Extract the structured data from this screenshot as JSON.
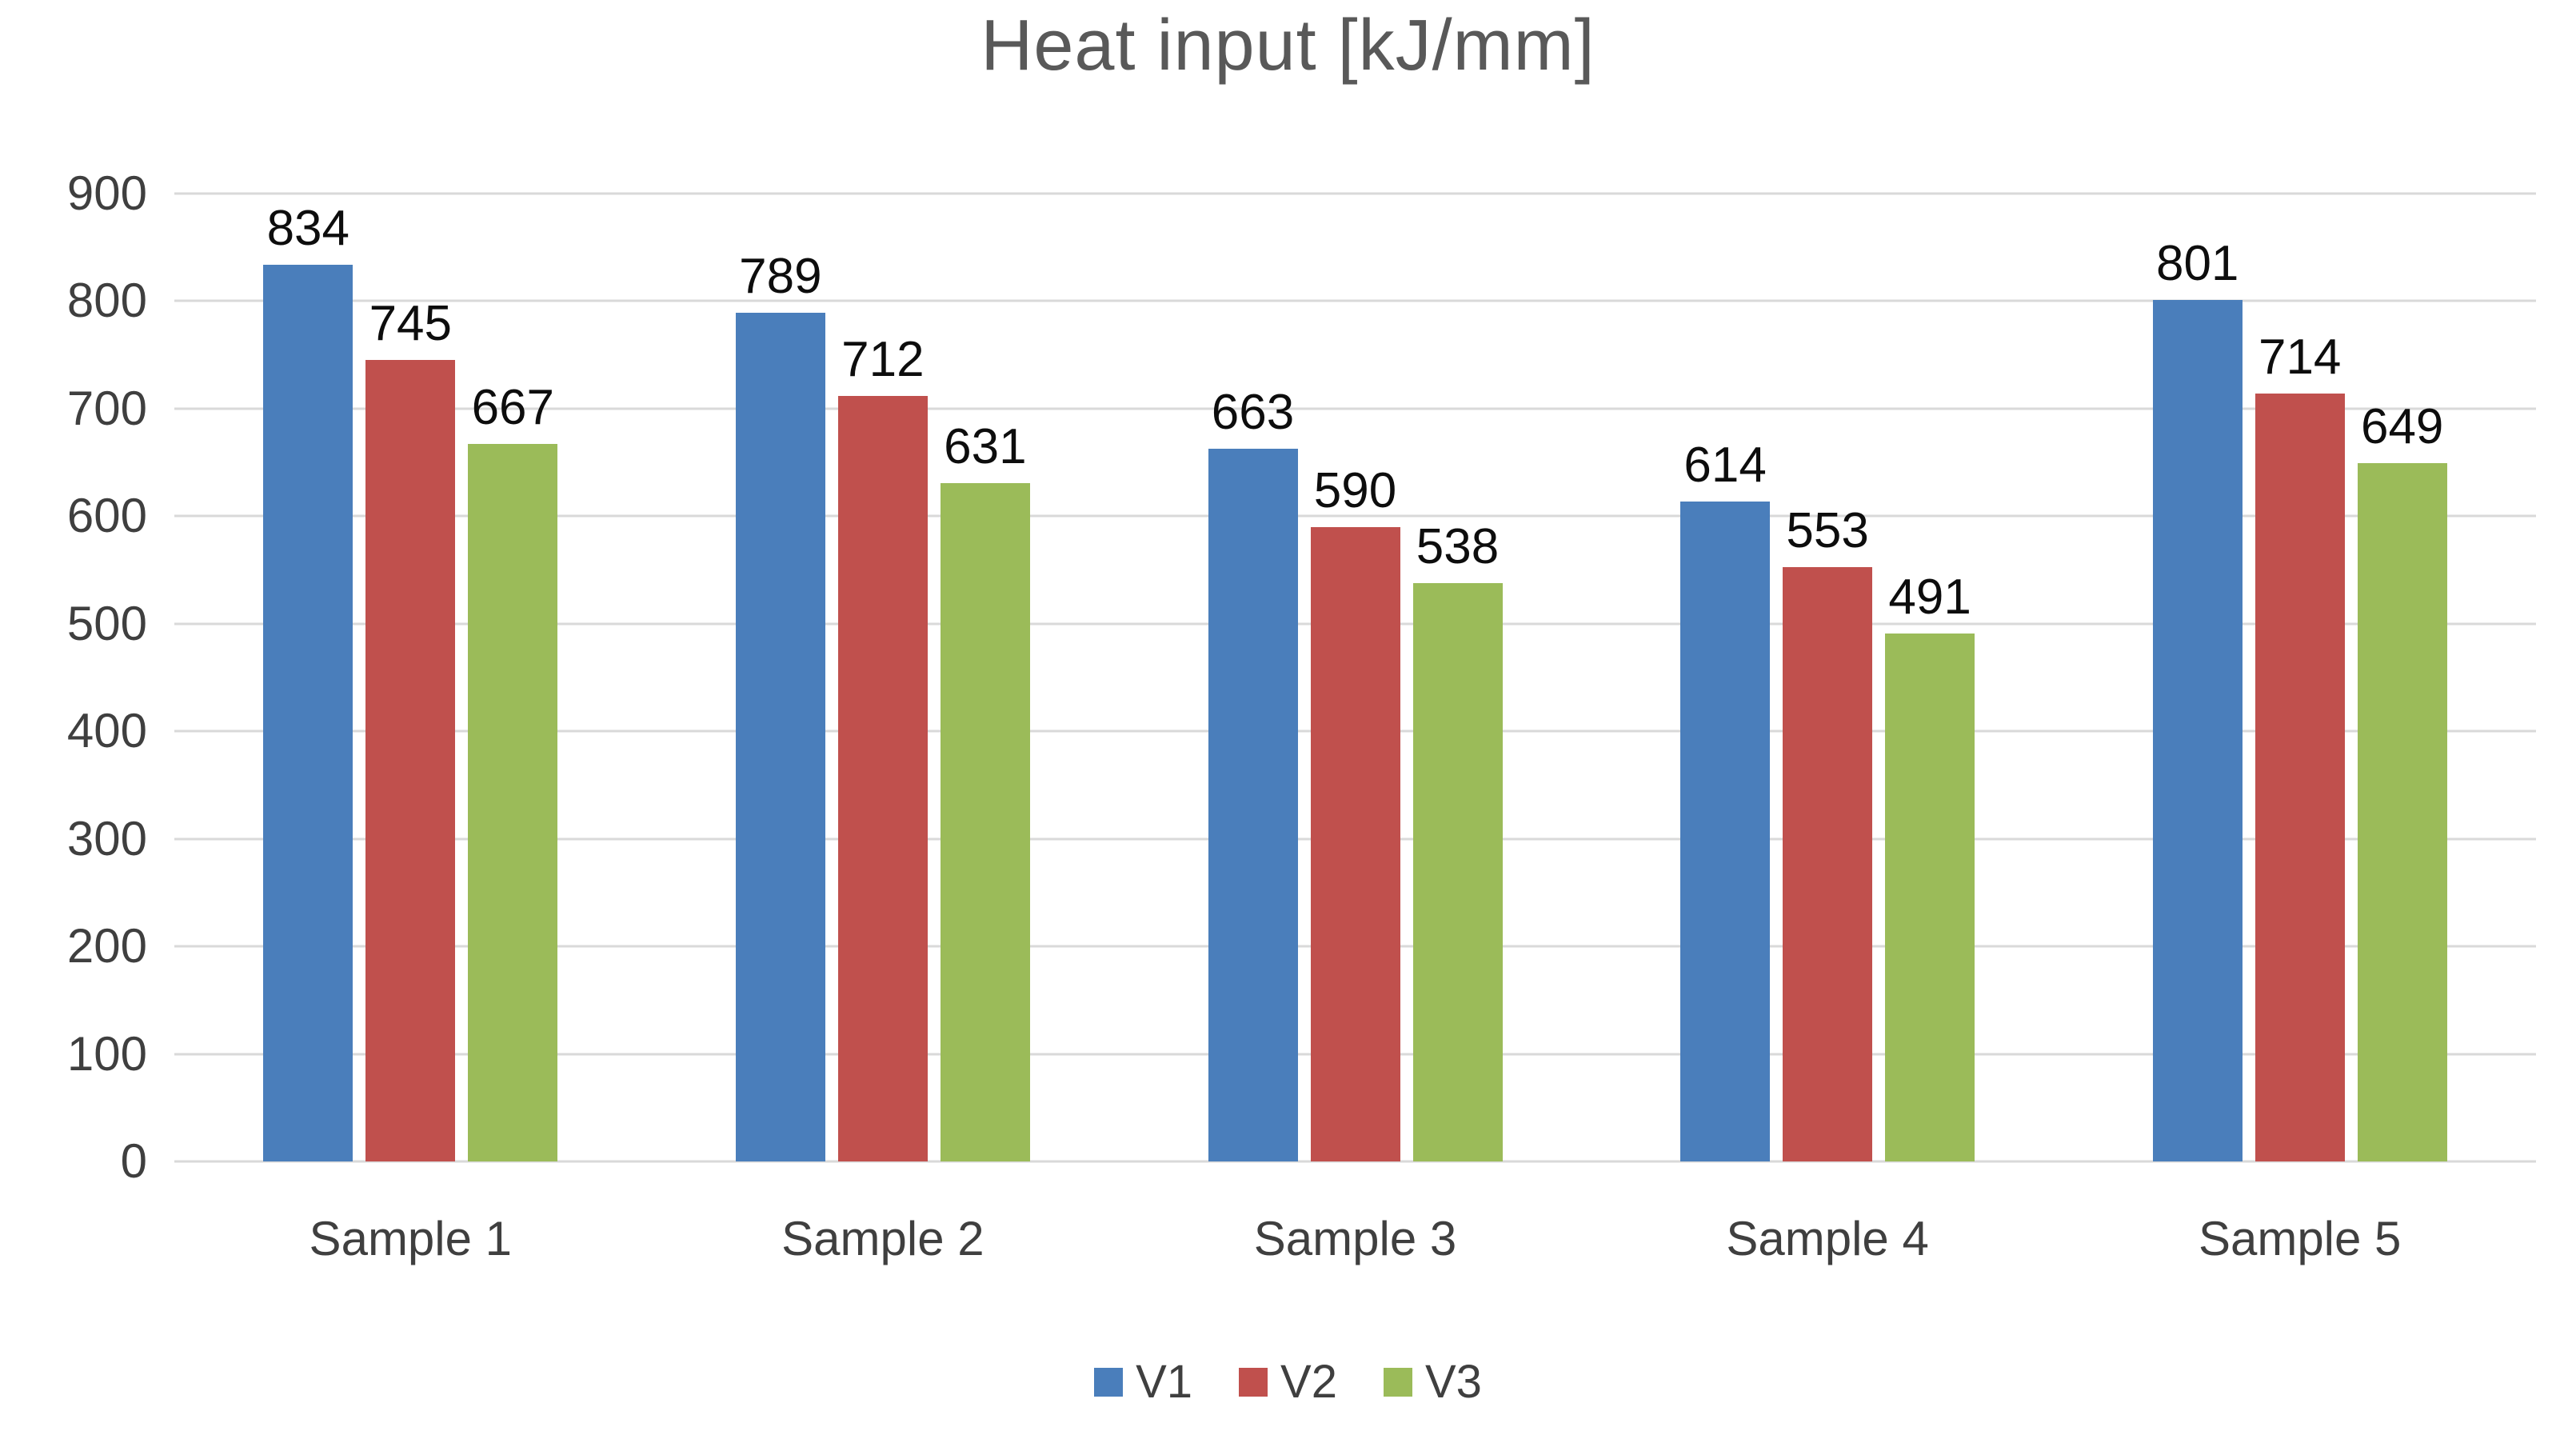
{
  "chart_data": {
    "type": "bar",
    "title": "Heat input [kJ/mm]",
    "categories": [
      "Sample 1",
      "Sample 2",
      "Sample 3",
      "Sample 4",
      "Sample 5"
    ],
    "series": [
      {
        "name": "V1",
        "color": "#4A7EBB",
        "values": [
          834,
          789,
          663,
          614,
          801
        ]
      },
      {
        "name": "V2",
        "color": "#C0504D",
        "values": [
          745,
          712,
          590,
          553,
          714
        ]
      },
      {
        "name": "V3",
        "color": "#9BBB59",
        "values": [
          667,
          631,
          538,
          491,
          649
        ]
      }
    ],
    "ylim": [
      0,
      900
    ],
    "ytick_step": 100,
    "grid": true,
    "legend_position": "bottom",
    "data_labels": true,
    "xlabel": "",
    "ylabel": ""
  }
}
